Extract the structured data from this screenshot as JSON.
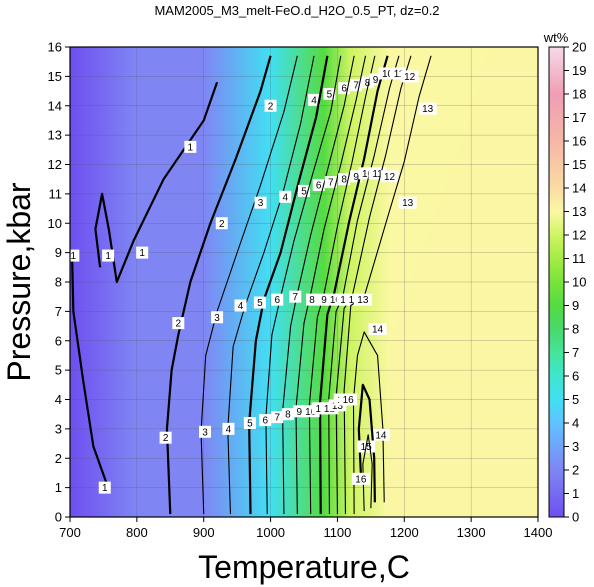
{
  "chart_data": {
    "type": "heatmap",
    "title": "MAM2005_M3_melt-FeO.d_H2O_0.5_PT, dz=0.2",
    "xlabel": "Temperature,C",
    "ylabel": "Pressure,kbar",
    "xlim": [
      700,
      1400
    ],
    "ylim": [
      0,
      16
    ],
    "x_ticks": [
      700,
      800,
      900,
      1000,
      1100,
      1200,
      1300,
      1400
    ],
    "y_ticks": [
      0,
      1,
      2,
      3,
      4,
      5,
      6,
      7,
      8,
      9,
      10,
      11,
      12,
      13,
      14,
      15,
      16
    ],
    "grid": true,
    "colorbar": {
      "unit": "wt%",
      "min": 0,
      "max": 20,
      "ticks": [
        0,
        1,
        2,
        3,
        4,
        5,
        6,
        7,
        8,
        9,
        10,
        11,
        12,
        13,
        14,
        15,
        16,
        17,
        18,
        19,
        20
      ],
      "stops": [
        {
          "v": 0,
          "color": "#6e4ff0"
        },
        {
          "v": 2,
          "color": "#7f86f4"
        },
        {
          "v": 4,
          "color": "#5fc3ff"
        },
        {
          "v": 5,
          "color": "#41dff2"
        },
        {
          "v": 6,
          "color": "#3fe6cd"
        },
        {
          "v": 7,
          "color": "#46e49a"
        },
        {
          "v": 8,
          "color": "#49d86c"
        },
        {
          "v": 9,
          "color": "#55dc41"
        },
        {
          "v": 10,
          "color": "#79e439"
        },
        {
          "v": 11,
          "color": "#a4ec45"
        },
        {
          "v": 12,
          "color": "#cff463"
        },
        {
          "v": 13,
          "color": "#fbf8a3"
        },
        {
          "v": 14,
          "color": "#fbdba3"
        },
        {
          "v": 16,
          "color": "#f6b7a6"
        },
        {
          "v": 18,
          "color": "#ef9eb4"
        },
        {
          "v": 20,
          "color": "#f6d9e9"
        }
      ]
    },
    "field_color_outside_melt": "#fbf6a3",
    "contours": [
      {
        "level": 1,
        "points": [
          [
            757,
            1.0
          ],
          [
            735,
            2.4
          ],
          [
            720,
            4.6
          ],
          [
            705,
            7.0
          ],
          [
            703,
            9.0
          ]
        ],
        "labels": [
          [
            705,
            8.9
          ],
          [
            752,
            1.0
          ]
        ]
      },
      {
        "level": 1,
        "points": [
          [
            745,
            8.5
          ],
          [
            738,
            9.8
          ],
          [
            748,
            11.0
          ],
          [
            758,
            9.8
          ],
          [
            770,
            8.0
          ],
          [
            795,
            9.4
          ],
          [
            840,
            11.5
          ],
          [
            900,
            13.5
          ],
          [
            920,
            14.8
          ]
        ],
        "labels": [
          [
            757,
            8.9
          ],
          [
            808,
            9.0
          ],
          [
            880,
            12.6
          ]
        ]
      },
      {
        "level": 2,
        "points": [
          [
            850,
            0.1
          ],
          [
            845,
            3.0
          ],
          [
            852,
            5.0
          ],
          [
            862,
            6.2
          ],
          [
            880,
            8.0
          ],
          [
            910,
            10.0
          ],
          [
            948,
            12.2
          ],
          [
            985,
            14.5
          ],
          [
            1000,
            15.7
          ]
        ],
        "labels": [
          [
            843,
            2.7
          ],
          [
            862,
            6.6
          ],
          [
            927,
            10.0
          ],
          [
            1000,
            14.0
          ]
        ]
      },
      {
        "level": 3,
        "points": [
          [
            900,
            0.1
          ],
          [
            896,
            2.9
          ],
          [
            903,
            5.5
          ],
          [
            920,
            7.0
          ],
          [
            950,
            9.0
          ],
          [
            985,
            11.3
          ],
          [
            1020,
            13.8
          ],
          [
            1040,
            15.7
          ]
        ],
        "labels": [
          [
            902,
            2.9
          ],
          [
            920,
            6.8
          ],
          [
            985,
            10.7
          ]
        ]
      },
      {
        "level": 4,
        "points": [
          [
            940,
            0.1
          ],
          [
            936,
            3.0
          ],
          [
            944,
            5.8
          ],
          [
            962,
            7.2
          ],
          [
            990,
            9.0
          ],
          [
            1018,
            11.0
          ],
          [
            1045,
            13.4
          ],
          [
            1065,
            15.7
          ]
        ],
        "labels": [
          [
            937,
            3.0
          ],
          [
            955,
            7.2
          ],
          [
            1022,
            10.9
          ],
          [
            1065,
            14.2
          ]
        ]
      },
      {
        "level": 5,
        "points": [
          [
            970,
            0.1
          ],
          [
            968,
            3.2
          ],
          [
            978,
            6.0
          ],
          [
            990,
            7.4
          ],
          [
            1015,
            9.0
          ],
          [
            1042,
            11.4
          ],
          [
            1068,
            13.6
          ],
          [
            1085,
            15.7
          ]
        ],
        "labels": [
          [
            969,
            3.2
          ],
          [
            984,
            7.3
          ],
          [
            1050,
            11.1
          ],
          [
            1088,
            14.4
          ]
        ]
      },
      {
        "level": 6,
        "points": [
          [
            995,
            0.1
          ],
          [
            993,
            3.4
          ],
          [
            1002,
            6.2
          ],
          [
            1015,
            7.5
          ],
          [
            1035,
            9.4
          ],
          [
            1062,
            11.6
          ],
          [
            1090,
            13.8
          ],
          [
            1105,
            15.7
          ]
        ],
        "labels": [
          [
            992,
            3.3
          ],
          [
            1010,
            7.4
          ],
          [
            1072,
            11.3
          ],
          [
            1110,
            14.6
          ]
        ]
      },
      {
        "level": 7,
        "points": [
          [
            1020,
            0.1
          ],
          [
            1018,
            3.6
          ],
          [
            1030,
            6.5
          ],
          [
            1040,
            7.6
          ],
          [
            1060,
            9.6
          ],
          [
            1085,
            11.8
          ],
          [
            1110,
            14.0
          ],
          [
            1125,
            15.7
          ]
        ],
        "labels": [
          [
            1010,
            3.4
          ],
          [
            1037,
            7.5
          ],
          [
            1090,
            11.4
          ],
          [
            1128,
            14.7
          ]
        ]
      },
      {
        "level": 8,
        "points": [
          [
            1040,
            0.1
          ],
          [
            1038,
            3.7
          ],
          [
            1050,
            6.6
          ],
          [
            1060,
            7.6
          ],
          [
            1080,
            9.8
          ],
          [
            1105,
            12.0
          ],
          [
            1128,
            14.2
          ],
          [
            1142,
            15.7
          ]
        ],
        "labels": [
          [
            1026,
            3.5
          ],
          [
            1062,
            7.4
          ],
          [
            1110,
            11.5
          ],
          [
            1145,
            14.8
          ]
        ]
      },
      {
        "level": 9,
        "points": [
          [
            1060,
            0.1
          ],
          [
            1058,
            3.8
          ],
          [
            1070,
            6.8
          ],
          [
            1080,
            7.6
          ],
          [
            1100,
            9.9
          ],
          [
            1122,
            12.1
          ],
          [
            1142,
            14.3
          ],
          [
            1156,
            15.7
          ]
        ],
        "labels": [
          [
            1043,
            3.6
          ],
          [
            1080,
            7.4
          ],
          [
            1128,
            11.6
          ],
          [
            1157,
            14.9
          ]
        ]
      },
      {
        "level": 10,
        "points": [
          [
            1075,
            0.1
          ],
          [
            1074,
            3.9
          ],
          [
            1085,
            6.9
          ],
          [
            1095,
            7.6
          ],
          [
            1118,
            10.1
          ],
          [
            1140,
            12.2
          ],
          [
            1160,
            14.5
          ],
          [
            1175,
            15.7
          ]
        ],
        "labels": [
          [
            1060,
            3.6
          ],
          [
            1097,
            7.4
          ],
          [
            1145,
            11.7
          ],
          [
            1175,
            15.1
          ]
        ]
      },
      {
        "level": 11,
        "points": [
          [
            1088,
            0.1
          ],
          [
            1087,
            4.0
          ],
          [
            1098,
            7.0
          ],
          [
            1108,
            7.5
          ],
          [
            1130,
            10.1
          ],
          [
            1155,
            12.3
          ],
          [
            1178,
            14.6
          ],
          [
            1192,
            15.7
          ]
        ],
        "labels": [
          [
            1075,
            3.7
          ],
          [
            1112,
            7.4
          ],
          [
            1160,
            11.7
          ],
          [
            1192,
            15.1
          ]
        ]
      },
      {
        "level": 12,
        "points": [
          [
            1100,
            0.1
          ],
          [
            1098,
            4.1
          ],
          [
            1110,
            7.1
          ],
          [
            1122,
            7.5
          ],
          [
            1148,
            10.2
          ],
          [
            1172,
            12.3
          ],
          [
            1195,
            14.6
          ],
          [
            1210,
            15.7
          ]
        ],
        "labels": [
          [
            1088,
            3.7
          ],
          [
            1125,
            7.4
          ],
          [
            1178,
            11.6
          ],
          [
            1208,
            15.0
          ]
        ]
      },
      {
        "level": 13,
        "points": [
          [
            1112,
            0.1
          ],
          [
            1110,
            4.3
          ],
          [
            1120,
            7.2
          ],
          [
            1140,
            7.5
          ],
          [
            1175,
            10.2
          ],
          [
            1200,
            12.1
          ],
          [
            1222,
            14.3
          ],
          [
            1240,
            15.7
          ]
        ],
        "labels": [
          [
            1100,
            3.8
          ],
          [
            1138,
            7.4
          ],
          [
            1205,
            10.7
          ],
          [
            1235,
            13.9
          ]
        ]
      },
      {
        "level": 14,
        "points": [
          [
            1125,
            0.1
          ],
          [
            1124,
            4.0
          ],
          [
            1130,
            5.5
          ],
          [
            1140,
            6.3
          ],
          [
            1160,
            5.5
          ],
          [
            1168,
            3.0
          ],
          [
            1170,
            0.5
          ]
        ],
        "labels": [
          [
            1108,
            4.0
          ],
          [
            1160,
            6.4
          ],
          [
            1165,
            2.8
          ]
        ]
      },
      {
        "level": 15,
        "points": [
          [
            1135,
            1.5
          ],
          [
            1132,
            3.0
          ],
          [
            1138,
            4.5
          ],
          [
            1148,
            4.0
          ],
          [
            1155,
            2.0
          ],
          [
            1156,
            0.5
          ]
        ],
        "labels": [
          [
            1143,
            2.4
          ]
        ]
      },
      {
        "level": 16,
        "points": [
          [
            1140,
            0.2
          ],
          [
            1138,
            1.8
          ],
          [
            1146,
            2.8
          ],
          [
            1152,
            1.8
          ],
          [
            1150,
            0.3
          ]
        ],
        "labels": [
          [
            1135,
            1.3
          ],
          [
            1116,
            4.0
          ]
        ]
      }
    ]
  }
}
